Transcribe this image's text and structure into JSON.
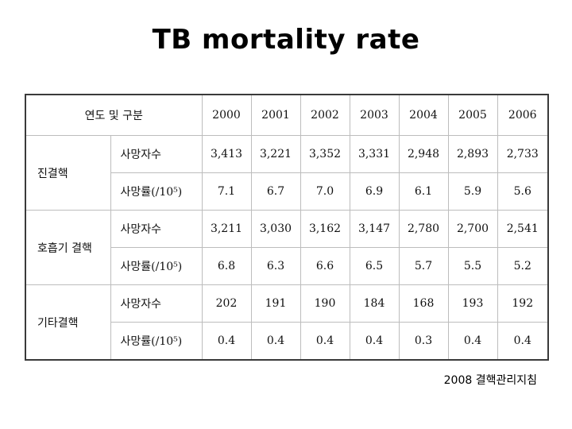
{
  "title": "TB mortality rate",
  "table": {
    "header_label": "연도 및 구분",
    "years": [
      "2000",
      "2001",
      "2002",
      "2003",
      "2004",
      "2005",
      "2006"
    ],
    "groups": [
      {
        "name": "진결핵",
        "rows": [
          {
            "label": "사망자수",
            "values": [
              "3,413",
              "3,221",
              "3,352",
              "3,331",
              "2,948",
              "2,893",
              "2,733"
            ]
          },
          {
            "label": "사망률(/10⁵)",
            "values": [
              "7.1",
              "6.7",
              "7.0",
              "6.9",
              "6.1",
              "5.9",
              "5.6"
            ]
          }
        ]
      },
      {
        "name": "호흡기 결핵",
        "rows": [
          {
            "label": "사망자수",
            "values": [
              "3,211",
              "3,030",
              "3,162",
              "3,147",
              "2,780",
              "2,700",
              "2,541"
            ]
          },
          {
            "label": "사망률(/10⁵)",
            "values": [
              "6.8",
              "6.3",
              "6.6",
              "6.5",
              "5.7",
              "5.5",
              "5.2"
            ]
          }
        ]
      },
      {
        "name": "기타결핵",
        "rows": [
          {
            "label": "사망자수",
            "values": [
              "202",
              "191",
              "190",
              "184",
              "168",
              "193",
              "192"
            ]
          },
          {
            "label": "사망률(/10⁵)",
            "values": [
              "0.4",
              "0.4",
              "0.4",
              "0.4",
              "0.3",
              "0.4",
              "0.4"
            ]
          }
        ]
      }
    ]
  },
  "footer": "2008 결핵관리지침"
}
